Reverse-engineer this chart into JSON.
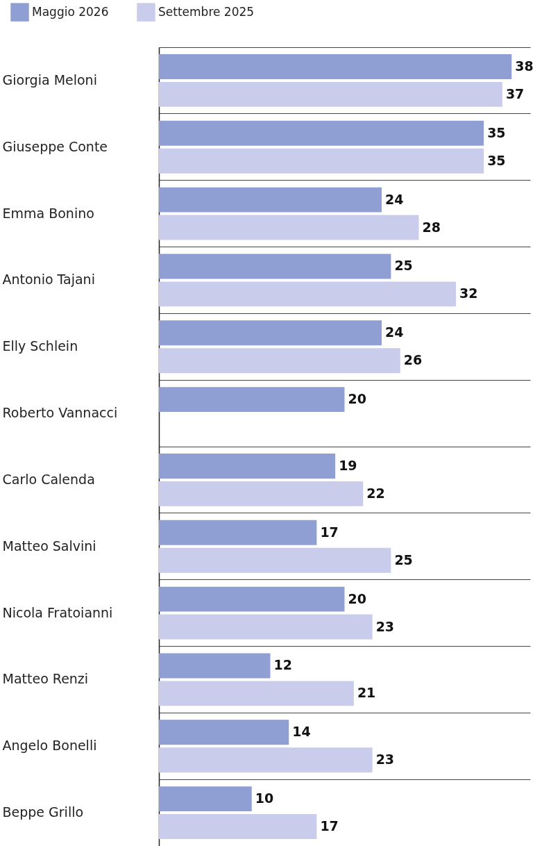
{
  "chart_data": {
    "type": "bar",
    "orientation": "horizontal",
    "categories": [
      "Giorgia Meloni",
      "Giuseppe Conte",
      "Emma Bonino",
      "Antonio Tajani",
      "Elly Schlein",
      "Roberto Vannacci",
      "Carlo Calenda",
      "Matteo Salvini",
      "Nicola Fratoianni",
      "Matteo Renzi",
      "Angelo Bonelli",
      "Beppe Grillo"
    ],
    "series": [
      {
        "name": "Maggio 2026",
        "color": "#8f9fd4",
        "values": [
          38,
          35,
          24,
          25,
          24,
          20,
          19,
          17,
          20,
          12,
          14,
          10
        ]
      },
      {
        "name": "Settembre 2025",
        "color": "#c9cdeb",
        "values": [
          37,
          35,
          28,
          32,
          26,
          null,
          22,
          25,
          23,
          21,
          23,
          17
        ]
      }
    ],
    "xlim": [
      0,
      40
    ],
    "grid": "y",
    "legend": "top left",
    "data_labels": true
  }
}
